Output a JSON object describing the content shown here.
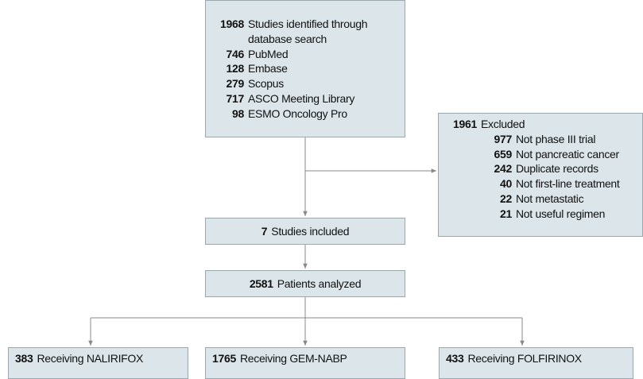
{
  "identified": {
    "count": 1968,
    "label": "Studies identified through database search",
    "sources": [
      {
        "count": 746,
        "label": "PubMed"
      },
      {
        "count": 128,
        "label": "Embase"
      },
      {
        "count": 279,
        "label": "Scopus"
      },
      {
        "count": 717,
        "label": "ASCO Meeting Library"
      },
      {
        "count": 98,
        "label": "ESMO Oncology Pro"
      }
    ]
  },
  "excluded": {
    "count": 1961,
    "label": "Excluded",
    "reasons": [
      {
        "count": 977,
        "label": "Not phase III trial"
      },
      {
        "count": 659,
        "label": "Not pancreatic cancer"
      },
      {
        "count": 242,
        "label": "Duplicate records"
      },
      {
        "count": 40,
        "label": "Not first-line treatment"
      },
      {
        "count": 22,
        "label": "Not metastatic"
      },
      {
        "count": 21,
        "label": "Not useful regimen"
      }
    ]
  },
  "included": {
    "count": 7,
    "label": "Studies included"
  },
  "analyzed": {
    "count": 2581,
    "label": "Patients analyzed"
  },
  "groups": [
    {
      "count": 383,
      "label": "Receiving NALIRIFOX"
    },
    {
      "count": 1765,
      "label": "Receiving GEM-NABP"
    },
    {
      "count": 433,
      "label": "Receiving FOLFIRINOX"
    }
  ]
}
